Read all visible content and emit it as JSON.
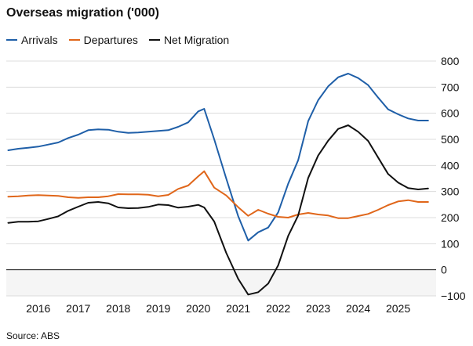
{
  "chart_data": {
    "type": "line",
    "title": "Overseas migration ('000)",
    "xlabel": "",
    "ylabel": "",
    "xlim": [
      2015.2,
      2025.95
    ],
    "ylim": [
      -100,
      800
    ],
    "y_ticks": [
      -100,
      0,
      100,
      200,
      300,
      400,
      500,
      600,
      700,
      800
    ],
    "x_ticks": [
      2016,
      2017,
      2018,
      2019,
      2020,
      2021,
      2022,
      2023,
      2024,
      2025
    ],
    "y_axis_side": "right",
    "grid": "horizontal",
    "legend": "top-left",
    "colors": {
      "text": "#111111",
      "grid": "#dcdcdc",
      "negative_band": "#f5f5f5",
      "zero_line": "#111111"
    },
    "series": [
      {
        "name": "Arrivals",
        "color": "#1f5fa8",
        "points": [
          [
            2015.25,
            458
          ],
          [
            2015.5,
            464
          ],
          [
            2015.75,
            468
          ],
          [
            2016.0,
            472
          ],
          [
            2016.25,
            480
          ],
          [
            2016.5,
            488
          ],
          [
            2016.75,
            505
          ],
          [
            2017.0,
            518
          ],
          [
            2017.25,
            535
          ],
          [
            2017.5,
            538
          ],
          [
            2017.75,
            537
          ],
          [
            2018.0,
            529
          ],
          [
            2018.25,
            525
          ],
          [
            2018.5,
            526
          ],
          [
            2018.75,
            529
          ],
          [
            2019.0,
            532
          ],
          [
            2019.25,
            535
          ],
          [
            2019.5,
            548
          ],
          [
            2019.75,
            565
          ],
          [
            2020.0,
            607
          ],
          [
            2020.15,
            617
          ],
          [
            2020.4,
            500
          ],
          [
            2020.7,
            350
          ],
          [
            2021.0,
            205
          ],
          [
            2021.25,
            112
          ],
          [
            2021.5,
            144
          ],
          [
            2021.75,
            162
          ],
          [
            2022.0,
            220
          ],
          [
            2022.25,
            330
          ],
          [
            2022.5,
            420
          ],
          [
            2022.75,
            570
          ],
          [
            2023.0,
            650
          ],
          [
            2023.25,
            703
          ],
          [
            2023.5,
            738
          ],
          [
            2023.75,
            752
          ],
          [
            2024.0,
            735
          ],
          [
            2024.25,
            708
          ],
          [
            2024.5,
            660
          ],
          [
            2024.75,
            615
          ],
          [
            2025.0,
            596
          ],
          [
            2025.25,
            580
          ],
          [
            2025.5,
            572
          ],
          [
            2025.75,
            572
          ]
        ]
      },
      {
        "name": "Departures",
        "color": "#e0661a",
        "points": [
          [
            2015.25,
            280
          ],
          [
            2015.5,
            282
          ],
          [
            2015.75,
            285
          ],
          [
            2016.0,
            286
          ],
          [
            2016.25,
            285
          ],
          [
            2016.5,
            283
          ],
          [
            2016.75,
            278
          ],
          [
            2017.0,
            276
          ],
          [
            2017.25,
            278
          ],
          [
            2017.5,
            278
          ],
          [
            2017.75,
            282
          ],
          [
            2018.0,
            290
          ],
          [
            2018.25,
            289
          ],
          [
            2018.5,
            289
          ],
          [
            2018.75,
            288
          ],
          [
            2019.0,
            282
          ],
          [
            2019.25,
            287
          ],
          [
            2019.5,
            310
          ],
          [
            2019.75,
            323
          ],
          [
            2020.0,
            358
          ],
          [
            2020.15,
            378
          ],
          [
            2020.4,
            315
          ],
          [
            2020.7,
            285
          ],
          [
            2021.0,
            240
          ],
          [
            2021.25,
            207
          ],
          [
            2021.5,
            230
          ],
          [
            2021.75,
            215
          ],
          [
            2022.0,
            203
          ],
          [
            2022.25,
            200
          ],
          [
            2022.5,
            212
          ],
          [
            2022.75,
            218
          ],
          [
            2023.0,
            212
          ],
          [
            2023.25,
            208
          ],
          [
            2023.5,
            198
          ],
          [
            2023.75,
            198
          ],
          [
            2024.0,
            206
          ],
          [
            2024.25,
            214
          ],
          [
            2024.5,
            230
          ],
          [
            2024.75,
            248
          ],
          [
            2025.0,
            262
          ],
          [
            2025.25,
            267
          ],
          [
            2025.5,
            260
          ],
          [
            2025.75,
            260
          ]
        ]
      },
      {
        "name": "Net Migration",
        "color": "#111111",
        "points": [
          [
            2015.25,
            180
          ],
          [
            2015.5,
            184
          ],
          [
            2015.75,
            184
          ],
          [
            2016.0,
            186
          ],
          [
            2016.25,
            195
          ],
          [
            2016.5,
            205
          ],
          [
            2016.75,
            226
          ],
          [
            2017.0,
            242
          ],
          [
            2017.25,
            257
          ],
          [
            2017.5,
            260
          ],
          [
            2017.75,
            255
          ],
          [
            2018.0,
            239
          ],
          [
            2018.25,
            236
          ],
          [
            2018.5,
            237
          ],
          [
            2018.75,
            241
          ],
          [
            2019.0,
            250
          ],
          [
            2019.25,
            248
          ],
          [
            2019.5,
            238
          ],
          [
            2019.75,
            242
          ],
          [
            2020.0,
            249
          ],
          [
            2020.15,
            239
          ],
          [
            2020.4,
            185
          ],
          [
            2020.7,
            65
          ],
          [
            2021.0,
            -35
          ],
          [
            2021.25,
            -95
          ],
          [
            2021.5,
            -86
          ],
          [
            2021.75,
            -53
          ],
          [
            2022.0,
            17
          ],
          [
            2022.25,
            130
          ],
          [
            2022.5,
            208
          ],
          [
            2022.75,
            352
          ],
          [
            2023.0,
            438
          ],
          [
            2023.25,
            495
          ],
          [
            2023.5,
            540
          ],
          [
            2023.75,
            554
          ],
          [
            2024.0,
            529
          ],
          [
            2024.25,
            494
          ],
          [
            2024.5,
            430
          ],
          [
            2024.75,
            367
          ],
          [
            2025.0,
            334
          ],
          [
            2025.25,
            313
          ],
          [
            2025.5,
            308
          ],
          [
            2025.75,
            312
          ]
        ]
      }
    ]
  },
  "source": "Source: ABS"
}
